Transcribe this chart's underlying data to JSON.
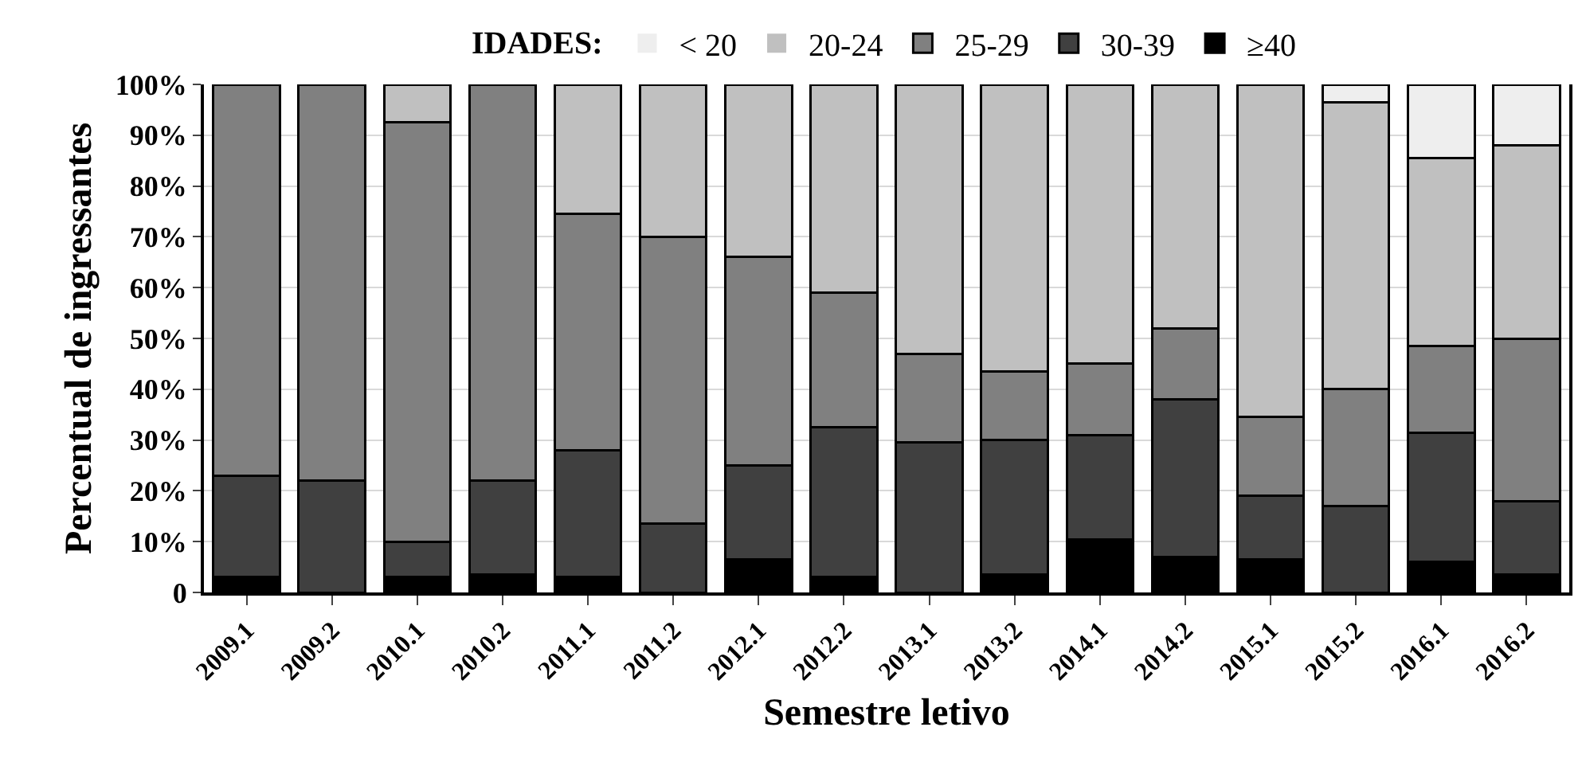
{
  "chart_data": {
    "type": "bar",
    "stacked": true,
    "xlabel": "Semestre letivo",
    "ylabel": "Percentual de ingressantes",
    "legend_title": "IDADES:",
    "legend": "top",
    "grid": "y",
    "categories": [
      "2009.1",
      "2009.2",
      "2010.1",
      "2010.2",
      "2011.1",
      "2011.2",
      "2012.1",
      "2012.2",
      "2013.1",
      "2013.2",
      "2014.1",
      "2014.2",
      "2015.1",
      "2015.2",
      "2016.1",
      "2016.2"
    ],
    "ylim": [
      0,
      100
    ],
    "yticks": [
      0,
      {
        "value": 10,
        "label": "10%"
      },
      {
        "value": 20,
        "label": "20%"
      },
      {
        "value": 30,
        "label": "30%"
      },
      {
        "value": 40,
        "label": "40%"
      },
      {
        "value": 50,
        "label": "50%"
      },
      {
        "value": 60,
        "label": "60%"
      },
      {
        "value": 70,
        "label": "70%"
      },
      {
        "value": 80,
        "label": "80%"
      },
      {
        "value": 90,
        "label": "90%"
      },
      {
        "value": 100,
        "label": "100%"
      }
    ],
    "series": [
      {
        "name": "≥40",
        "color": "#000000",
        "values": [
          3,
          0,
          3,
          3.5,
          3,
          0,
          6.5,
          3,
          0,
          3.5,
          10.5,
          7,
          6.5,
          0,
          6,
          3.5
        ]
      },
      {
        "name": "30-39",
        "color": "#404040",
        "values": [
          20,
          22,
          7,
          18.5,
          25,
          13.5,
          18.5,
          29.5,
          29.5,
          26.5,
          20.5,
          31,
          12.5,
          17,
          25.5,
          14.5
        ]
      },
      {
        "name": "25-29",
        "color": "#808080",
        "values": [
          77,
          78,
          82.5,
          78,
          46.5,
          56.5,
          41,
          26.5,
          17.5,
          13.5,
          14,
          14,
          15.5,
          23,
          17,
          32
        ]
      },
      {
        "name": "20-24",
        "color": "#c0c0c0",
        "values": [
          0,
          0,
          7.5,
          0,
          25.5,
          30,
          34,
          41,
          53,
          56.5,
          55,
          48,
          65.5,
          56.5,
          37,
          38
        ]
      },
      {
        "name": "< 20",
        "color": "#eeeeee",
        "values": [
          0,
          0,
          0,
          0,
          0,
          0,
          0,
          0,
          0,
          0,
          0,
          0,
          0,
          3.5,
          14.5,
          12
        ]
      }
    ]
  }
}
